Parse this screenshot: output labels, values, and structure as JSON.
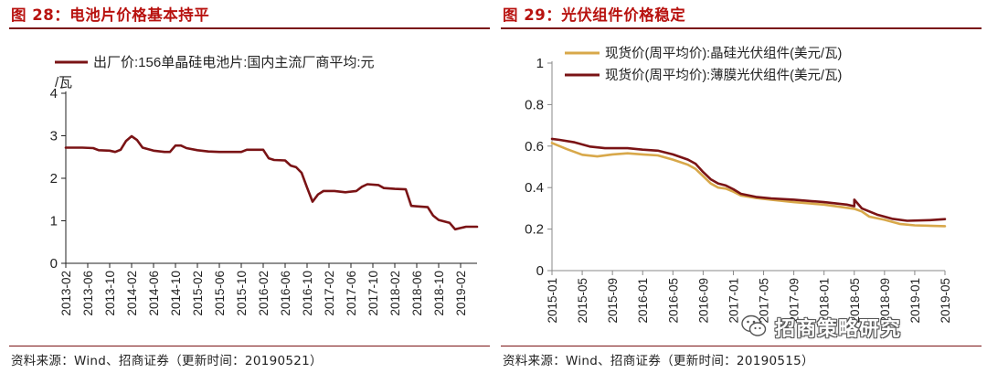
{
  "figures": [
    {
      "title": "图 28：电池片价格基本持平",
      "source": "资料来源：Wind、招商证券（更新时间：20190521）"
    },
    {
      "title": "图 29：光伏组件价格稳定",
      "source": "资料来源：Wind、招商证券（更新时间：20190515）"
    }
  ],
  "watermark": {
    "text": "招商策略研究",
    "icon": "wechat-icon"
  },
  "colors": {
    "maroon": "#7a1315",
    "gold": "#d8a84a",
    "title_red": "#b8120f"
  },
  "chart_data": [
    {
      "type": "line",
      "ylim": [
        0,
        4
      ],
      "yticks": [
        "0",
        "1",
        "2",
        "3",
        "4"
      ],
      "xlim": [
        "2013-02",
        "2019-05"
      ],
      "xticks": [
        "2013-02",
        "2013-06",
        "2013-10",
        "2014-02",
        "2014-06",
        "2014-10",
        "2015-02",
        "2015-06",
        "2015-10",
        "2016-02",
        "2016-06",
        "2016-10",
        "2017-02",
        "2017-06",
        "2017-10",
        "2018-02",
        "2018-06",
        "2018-10",
        "2019-02"
      ],
      "legend_position": "top-left",
      "grid": false,
      "series": [
        {
          "name": "出厂价:156单晶硅电池片:国内主流厂商平均:元/瓦",
          "color": "#7a1315",
          "points": [
            [
              "2013-02",
              2.72
            ],
            [
              "2013-05",
              2.72
            ],
            [
              "2013-07",
              2.71
            ],
            [
              "2013-08",
              2.66
            ],
            [
              "2013-10",
              2.65
            ],
            [
              "2013-11",
              2.62
            ],
            [
              "2013-12",
              2.67
            ],
            [
              "2014-01",
              2.88
            ],
            [
              "2014-02",
              2.99
            ],
            [
              "2014-03",
              2.9
            ],
            [
              "2014-04",
              2.72
            ],
            [
              "2014-06",
              2.65
            ],
            [
              "2014-08",
              2.62
            ],
            [
              "2014-09",
              2.62
            ],
            [
              "2014-10",
              2.77
            ],
            [
              "2014-11",
              2.77
            ],
            [
              "2014-12",
              2.71
            ],
            [
              "2015-02",
              2.66
            ],
            [
              "2015-04",
              2.63
            ],
            [
              "2015-06",
              2.62
            ],
            [
              "2015-08",
              2.62
            ],
            [
              "2015-10",
              2.62
            ],
            [
              "2015-11",
              2.67
            ],
            [
              "2016-02",
              2.67
            ],
            [
              "2016-03",
              2.47
            ],
            [
              "2016-04",
              2.43
            ],
            [
              "2016-06",
              2.42
            ],
            [
              "2016-07",
              2.3
            ],
            [
              "2016-08",
              2.26
            ],
            [
              "2016-09",
              2.13
            ],
            [
              "2016-10",
              1.78
            ],
            [
              "2016-11",
              1.45
            ],
            [
              "2016-12",
              1.62
            ],
            [
              "2017-01",
              1.7
            ],
            [
              "2017-03",
              1.7
            ],
            [
              "2017-05",
              1.67
            ],
            [
              "2017-07",
              1.7
            ],
            [
              "2017-08",
              1.8
            ],
            [
              "2017-09",
              1.86
            ],
            [
              "2017-11",
              1.84
            ],
            [
              "2017-12",
              1.77
            ],
            [
              "2018-02",
              1.75
            ],
            [
              "2018-04",
              1.74
            ],
            [
              "2018-05",
              1.35
            ],
            [
              "2018-06",
              1.34
            ],
            [
              "2018-08",
              1.32
            ],
            [
              "2018-09",
              1.12
            ],
            [
              "2018-10",
              1.02
            ],
            [
              "2018-12",
              0.95
            ],
            [
              "2019-01",
              0.8
            ],
            [
              "2019-02",
              0.83
            ],
            [
              "2019-03",
              0.86
            ],
            [
              "2019-05",
              0.86
            ]
          ]
        }
      ]
    },
    {
      "type": "line",
      "ylim": [
        0,
        1
      ],
      "yticks": [
        "0",
        "0.2",
        "0.4",
        "0.6",
        "0.8",
        "1"
      ],
      "xlim": [
        "2015-01",
        "2019-05"
      ],
      "xticks": [
        "2015-01",
        "2015-05",
        "2015-09",
        "2016-01",
        "2016-05",
        "2016-09",
        "2017-01",
        "2017-05",
        "2017-09",
        "2018-01",
        "2018-05",
        "2018-09",
        "2019-01",
        "2019-05"
      ],
      "legend_position": "top-right",
      "grid": false,
      "series": [
        {
          "name": "现货价(周平均价):晶硅光伏组件(美元/瓦)",
          "color": "#d8a84a",
          "points": [
            [
              "2015-01",
              0.615
            ],
            [
              "2015-03",
              0.585
            ],
            [
              "2015-05",
              0.558
            ],
            [
              "2015-07",
              0.55
            ],
            [
              "2015-09",
              0.56
            ],
            [
              "2015-11",
              0.565
            ],
            [
              "2016-01",
              0.56
            ],
            [
              "2016-03",
              0.555
            ],
            [
              "2016-05",
              0.535
            ],
            [
              "2016-07",
              0.51
            ],
            [
              "2016-08",
              0.49
            ],
            [
              "2016-09",
              0.455
            ],
            [
              "2016-10",
              0.42
            ],
            [
              "2016-11",
              0.4
            ],
            [
              "2016-12",
              0.395
            ],
            [
              "2017-01",
              0.38
            ],
            [
              "2017-02",
              0.362
            ],
            [
              "2017-04",
              0.35
            ],
            [
              "2017-06",
              0.342
            ],
            [
              "2017-09",
              0.33
            ],
            [
              "2018-01",
              0.318
            ],
            [
              "2018-05",
              0.298
            ],
            [
              "2018-06",
              0.285
            ],
            [
              "2018-07",
              0.26
            ],
            [
              "2018-09",
              0.245
            ],
            [
              "2018-11",
              0.225
            ],
            [
              "2019-01",
              0.218
            ],
            [
              "2019-05",
              0.214
            ]
          ]
        },
        {
          "name": "现货价(周平均价):薄膜光伏组件(美元/瓦)",
          "color": "#7a1315",
          "points": [
            [
              "2015-01",
              0.635
            ],
            [
              "2015-02",
              0.63
            ],
            [
              "2015-04",
              0.618
            ],
            [
              "2015-06",
              0.598
            ],
            [
              "2015-08",
              0.59
            ],
            [
              "2015-11",
              0.59
            ],
            [
              "2016-01",
              0.583
            ],
            [
              "2016-03",
              0.578
            ],
            [
              "2016-05",
              0.56
            ],
            [
              "2016-07",
              0.535
            ],
            [
              "2016-08",
              0.515
            ],
            [
              "2016-09",
              0.475
            ],
            [
              "2016-10",
              0.44
            ],
            [
              "2016-11",
              0.42
            ],
            [
              "2016-12",
              0.41
            ],
            [
              "2017-01",
              0.392
            ],
            [
              "2017-02",
              0.37
            ],
            [
              "2017-04",
              0.355
            ],
            [
              "2017-06",
              0.348
            ],
            [
              "2017-09",
              0.342
            ],
            [
              "2018-01",
              0.33
            ],
            [
              "2018-04",
              0.318
            ],
            [
              "2018-05",
              0.31
            ],
            [
              "2018-05",
              0.342
            ],
            [
              "2018-06",
              0.3
            ],
            [
              "2018-07",
              0.285
            ],
            [
              "2018-08",
              0.27
            ],
            [
              "2018-10",
              0.25
            ],
            [
              "2018-12",
              0.24
            ],
            [
              "2019-03",
              0.243
            ],
            [
              "2019-05",
              0.248
            ]
          ]
        }
      ]
    }
  ]
}
